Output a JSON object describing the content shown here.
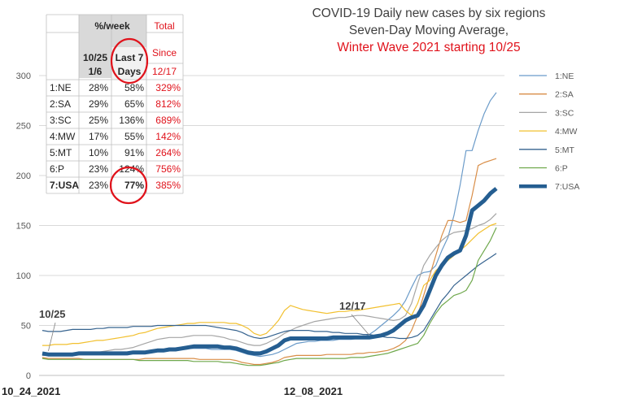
{
  "chart_data": {
    "type": "line",
    "title": "COVID-19 Daily new cases by six regions",
    "subtitle": "Seven-Day Moving Average,",
    "subtitle2": "Winter Wave 2021 starting 10/25",
    "ylim": [
      0,
      300
    ],
    "yticks": [
      "0",
      "50",
      "100",
      "150",
      "200",
      "250",
      "300"
    ],
    "xtick_labels": [
      "10_24_2021",
      "12_08_2021"
    ],
    "x_range": [
      "10/24/2021",
      "1/6/2022"
    ],
    "legend_position": "right",
    "grid": "horizontal",
    "annotations": [
      {
        "text": "10/25",
        "x": "10/25/2021",
        "y": 22
      },
      {
        "text": "12/17",
        "x": "12/17/2021",
        "y": 38
      }
    ],
    "series": [
      {
        "name": "1:NE",
        "color": "#6b9bc9",
        "width": 1.2,
        "values": [
          20,
          20,
          21,
          21,
          21,
          21,
          22,
          22,
          22,
          22,
          23,
          23,
          23,
          23,
          23,
          24,
          24,
          24,
          25,
          25,
          25,
          26,
          26,
          26,
          27,
          27,
          27,
          27,
          26,
          26,
          26,
          26,
          25,
          23,
          21,
          20,
          19,
          20,
          21,
          23,
          26,
          29,
          32,
          33,
          34,
          34,
          35,
          35,
          35,
          36,
          36,
          36,
          37,
          38,
          41,
          45,
          50,
          55,
          60,
          66,
          75,
          88,
          100,
          103,
          104,
          110,
          125,
          138,
          160,
          190,
          225,
          225,
          245,
          262,
          275,
          283
        ]
      },
      {
        "name": "2:SA",
        "color": "#d98e48",
        "width": 1.2,
        "values": [
          18,
          17,
          17,
          17,
          17,
          17,
          17,
          16,
          16,
          16,
          16,
          16,
          16,
          16,
          16,
          16,
          16,
          17,
          17,
          17,
          17,
          17,
          17,
          17,
          17,
          17,
          16,
          16,
          16,
          16,
          16,
          16,
          15,
          13,
          12,
          11,
          11,
          12,
          13,
          15,
          18,
          19,
          20,
          20,
          20,
          20,
          20,
          21,
          21,
          21,
          21,
          21,
          22,
          22,
          23,
          23,
          24,
          25,
          27,
          30,
          35,
          45,
          60,
          80,
          100,
          120,
          140,
          155,
          155,
          153,
          155,
          180,
          210,
          213,
          215,
          217
        ]
      },
      {
        "name": "3:SC",
        "color": "#a5a5a5",
        "width": 1.2,
        "values": [
          20,
          20,
          20,
          20,
          21,
          21,
          21,
          22,
          22,
          23,
          24,
          25,
          26,
          26,
          27,
          28,
          30,
          32,
          34,
          36,
          37,
          38,
          38,
          38,
          39,
          40,
          40,
          40,
          40,
          39,
          38,
          36,
          35,
          33,
          31,
          30,
          30,
          32,
          35,
          38,
          42,
          45,
          48,
          50,
          52,
          54,
          55,
          56,
          57,
          58,
          58,
          59,
          60,
          60,
          59,
          58,
          57,
          56,
          55,
          56,
          60,
          72,
          92,
          110,
          120,
          128,
          135,
          140,
          143,
          144,
          145,
          147,
          150,
          152,
          156,
          162
        ]
      },
      {
        "name": "4:MW",
        "color": "#f2c02f",
        "width": 1.2,
        "values": [
          30,
          30,
          31,
          31,
          31,
          32,
          32,
          33,
          34,
          35,
          35,
          36,
          37,
          38,
          39,
          40,
          42,
          43,
          45,
          47,
          48,
          49,
          50,
          51,
          52,
          52,
          53,
          53,
          53,
          53,
          53,
          52,
          52,
          50,
          47,
          42,
          40,
          42,
          48,
          55,
          65,
          70,
          68,
          66,
          65,
          64,
          63,
          62,
          63,
          64,
          64,
          65,
          65,
          66,
          67,
          68,
          69,
          70,
          71,
          72,
          65,
          60,
          72,
          90,
          95,
          105,
          110,
          115,
          120,
          125,
          130,
          136,
          142,
          146,
          150,
          152
        ]
      },
      {
        "name": "5:MT",
        "color": "#36638f",
        "width": 1.2,
        "values": [
          45,
          44,
          44,
          44,
          45,
          46,
          46,
          46,
          46,
          47,
          47,
          48,
          48,
          48,
          48,
          49,
          49,
          49,
          49,
          50,
          50,
          50,
          50,
          50,
          50,
          50,
          50,
          50,
          49,
          48,
          47,
          46,
          45,
          43,
          40,
          38,
          37,
          38,
          40,
          42,
          44,
          45,
          45,
          45,
          45,
          44,
          44,
          44,
          43,
          43,
          42,
          42,
          42,
          41,
          41,
          40,
          39,
          38,
          38,
          37,
          37,
          38,
          40,
          45,
          55,
          65,
          75,
          82,
          90,
          95,
          100,
          105,
          110,
          114,
          118,
          122
        ]
      },
      {
        "name": "6:P",
        "color": "#6fa84c",
        "width": 1.2,
        "values": [
          17,
          16,
          16,
          16,
          16,
          16,
          16,
          16,
          16,
          16,
          16,
          16,
          16,
          16,
          16,
          16,
          15,
          15,
          15,
          15,
          15,
          15,
          15,
          15,
          15,
          14,
          14,
          14,
          14,
          14,
          13,
          13,
          12,
          11,
          10,
          10,
          10,
          11,
          12,
          13,
          15,
          16,
          17,
          17,
          17,
          17,
          17,
          17,
          17,
          17,
          17,
          18,
          18,
          18,
          19,
          20,
          21,
          22,
          24,
          26,
          28,
          30,
          32,
          40,
          52,
          62,
          70,
          75,
          80,
          82,
          85,
          95,
          115,
          125,
          135,
          148
        ]
      },
      {
        "name": "7:USA",
        "color": "#255e91",
        "width": 5,
        "values": [
          22,
          21,
          21,
          21,
          21,
          21,
          22,
          22,
          22,
          22,
          22,
          22,
          22,
          22,
          22,
          23,
          23,
          23,
          24,
          25,
          25,
          26,
          26,
          27,
          28,
          29,
          29,
          29,
          29,
          29,
          28,
          28,
          27,
          25,
          23,
          22,
          22,
          24,
          27,
          30,
          35,
          37,
          37,
          37,
          37,
          37,
          37,
          37,
          38,
          38,
          38,
          38,
          38,
          38,
          38,
          39,
          40,
          42,
          45,
          50,
          55,
          58,
          60,
          70,
          85,
          100,
          110,
          118,
          122,
          125,
          140,
          165,
          170,
          175,
          182,
          187
        ]
      }
    ],
    "table": {
      "header_row1": [
        "",
        "%/week",
        "Total"
      ],
      "header_row2": [
        "",
        "10/25 1/6",
        "Last 7 Days",
        "Since 12/17"
      ],
      "h_10_25": "10/25",
      "h_1_6": "1/6",
      "h_last7": "Last 7",
      "h_days": "Days",
      "h_since": "Since",
      "h_1217": "12/17",
      "rows": [
        {
          "region": "1:NE",
          "c1025": "28%",
          "last7": "58%",
          "since": "329%"
        },
        {
          "region": "2:SA",
          "c1025": "29%",
          "last7": "65%",
          "since": "812%"
        },
        {
          "region": "3:SC",
          "c1025": "25%",
          "last7": "136%",
          "since": "689%"
        },
        {
          "region": "4:MW",
          "c1025": "17%",
          "last7": "55%",
          "since": "142%"
        },
        {
          "region": "5:MT",
          "c1025": "10%",
          "last7": "91%",
          "since": "264%"
        },
        {
          "region": "6:P",
          "c1025": "23%",
          "last7": "124%",
          "since": "756%"
        },
        {
          "region": "7:USA",
          "c1025": "23%",
          "last7": "77%",
          "since": "385%"
        }
      ]
    },
    "colors": {
      "title": "#404040",
      "highlight_red": "#e0121b",
      "header_gray": "#d9d9d9",
      "grid": "#d9d9d9"
    }
  }
}
